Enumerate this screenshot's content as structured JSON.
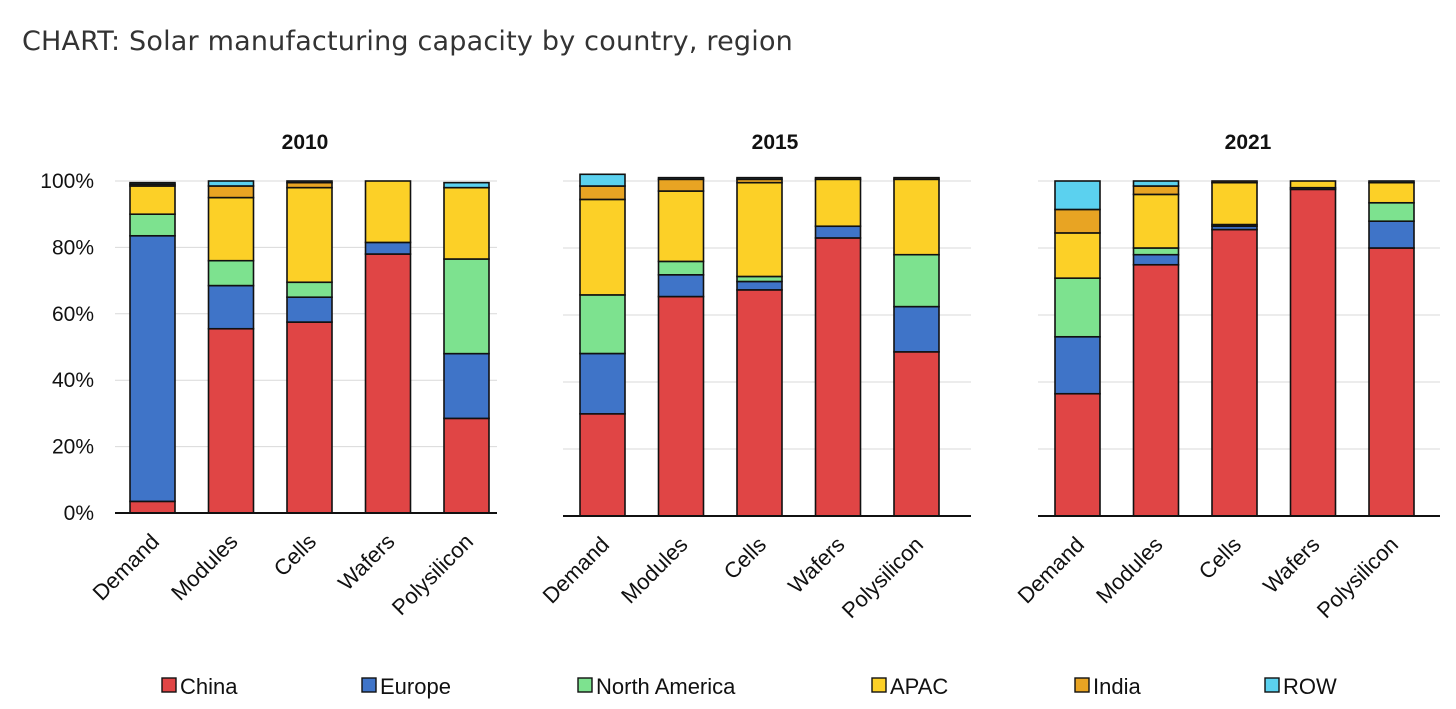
{
  "header": {
    "title": "CHART: Solar manufacturing capacity by country, region"
  },
  "chart_data": {
    "type": "bar",
    "stacked": true,
    "categories": [
      "Demand",
      "Modules",
      "Cells",
      "Wafers",
      "Polysilicon"
    ],
    "y_ticks": [
      "0%",
      "20%",
      "40%",
      "60%",
      "80%",
      "100%"
    ],
    "ylim": [
      0,
      100
    ],
    "grid": true,
    "legend_position": "bottom",
    "legend": [
      {
        "name": "China",
        "color": "#e04545"
      },
      {
        "name": "Europe",
        "color": "#3f74c8"
      },
      {
        "name": "North America",
        "color": "#7de28f"
      },
      {
        "name": "APAC",
        "color": "#fcd027"
      },
      {
        "name": "India",
        "color": "#e8a423"
      },
      {
        "name": "ROW",
        "color": "#5bd1ef"
      }
    ],
    "panels": [
      {
        "title": "2010",
        "series": [
          {
            "name": "China",
            "values": [
              3.5,
              55.5,
              57.5,
              78,
              28.5
            ]
          },
          {
            "name": "Europe",
            "values": [
              80,
              13,
              7.5,
              3.5,
              19.5
            ]
          },
          {
            "name": "North America",
            "values": [
              6.5,
              7.5,
              4.5,
              0,
              28.5
            ]
          },
          {
            "name": "APAC",
            "values": [
              8.5,
              19,
              28.5,
              18.5,
              21.5
            ]
          },
          {
            "name": "India",
            "values": [
              0.5,
              3.5,
              1.5,
              0,
              0
            ]
          },
          {
            "name": "ROW",
            "values": [
              0.5,
              1.5,
              0.5,
              0,
              1.5
            ]
          }
        ]
      },
      {
        "title": "2015",
        "series": [
          {
            "name": "China",
            "values": [
              30.5,
              65.5,
              67.5,
              83,
              49
            ]
          },
          {
            "name": "Europe",
            "values": [
              18,
              6.5,
              2.5,
              3.5,
              13.5
            ]
          },
          {
            "name": "North America",
            "values": [
              17.5,
              4,
              1.5,
              0,
              15.5
            ]
          },
          {
            "name": "APAC",
            "values": [
              28.5,
              21,
              28,
              14,
              22.5
            ]
          },
          {
            "name": "India",
            "values": [
              4,
              3.5,
              1,
              0.5,
              0.5
            ]
          },
          {
            "name": "ROW",
            "values": [
              3.5,
              0.5,
              0.5,
              0,
              0
            ]
          }
        ]
      },
      {
        "title": "2021",
        "series": [
          {
            "name": "China",
            "values": [
              36.5,
              75,
              85.5,
              97.5,
              80
            ]
          },
          {
            "name": "Europe",
            "values": [
              17,
              3,
              1,
              0.5,
              8
            ]
          },
          {
            "name": "North America",
            "values": [
              17.5,
              2,
              0.5,
              0,
              5.5
            ]
          },
          {
            "name": "APAC",
            "values": [
              13.5,
              16,
              12.5,
              2,
              6
            ]
          },
          {
            "name": "India",
            "values": [
              7,
              2.5,
              0.5,
              0,
              0
            ]
          },
          {
            "name": "ROW",
            "values": [
              8.5,
              1.5,
              0,
              0,
              0.5
            ]
          }
        ]
      }
    ]
  }
}
